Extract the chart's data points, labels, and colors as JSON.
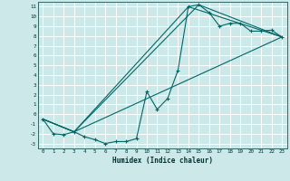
{
  "xlabel": "Humidex (Indice chaleur)",
  "background_color": "#cce8e8",
  "grid_color": "#b0d4d4",
  "line_color": "#006666",
  "xlim": [
    -0.5,
    23.5
  ],
  "ylim": [
    -3.5,
    11.5
  ],
  "xticks": [
    0,
    1,
    2,
    3,
    4,
    5,
    6,
    7,
    8,
    9,
    10,
    11,
    12,
    13,
    14,
    15,
    16,
    17,
    18,
    19,
    20,
    21,
    22,
    23
  ],
  "yticks": [
    -3,
    -2,
    -1,
    0,
    1,
    2,
    3,
    4,
    5,
    6,
    7,
    8,
    9,
    10,
    11
  ],
  "curve_x": [
    0,
    1,
    2,
    3,
    4,
    5,
    6,
    7,
    8,
    9,
    10,
    11,
    12,
    13,
    14,
    15,
    16,
    17,
    18,
    19,
    20,
    21,
    22,
    23
  ],
  "curve_y": [
    -0.5,
    -2.0,
    -2.1,
    -1.8,
    -2.3,
    -2.6,
    -3.0,
    -2.8,
    -2.8,
    -2.5,
    2.3,
    0.5,
    1.6,
    4.5,
    11.0,
    11.2,
    10.4,
    9.0,
    9.3,
    9.3,
    8.5,
    8.5,
    8.6,
    7.9
  ],
  "line2_x": [
    0,
    3,
    14,
    23
  ],
  "line2_y": [
    -0.5,
    -1.8,
    11.0,
    7.9
  ],
  "line3_x": [
    0,
    3,
    15,
    23
  ],
  "line3_y": [
    -0.5,
    -1.8,
    11.2,
    7.9
  ],
  "line4_x": [
    0,
    3,
    23
  ],
  "line4_y": [
    -0.5,
    -1.8,
    7.9
  ],
  "tick_fontsize": 4.2,
  "xlabel_fontsize": 5.5
}
